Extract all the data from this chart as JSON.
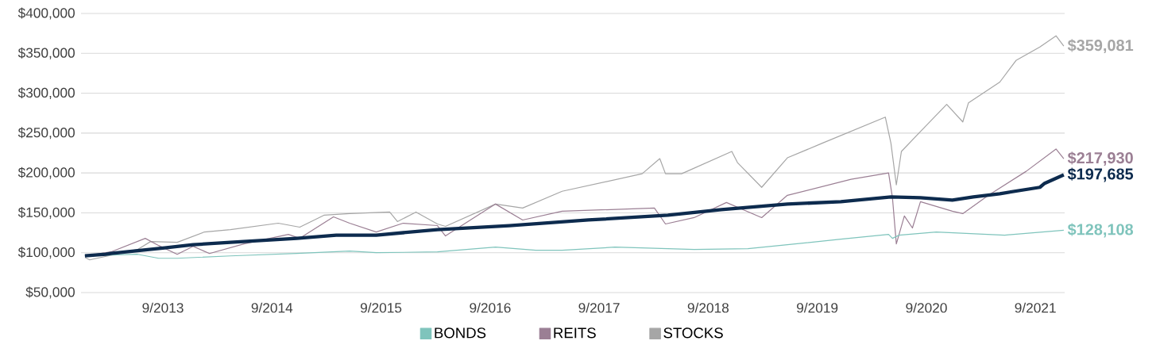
{
  "chart_data": {
    "type": "line",
    "xlim": [
      "2012-12-01",
      "2021-12-08"
    ],
    "ylim": [
      50000,
      400000
    ],
    "xticks": [
      {
        "value": "2013-09-01",
        "label": "9/2013"
      },
      {
        "value": "2014-09-01",
        "label": "9/2014"
      },
      {
        "value": "2015-09-01",
        "label": "9/2015"
      },
      {
        "value": "2016-09-01",
        "label": "9/2016"
      },
      {
        "value": "2017-09-01",
        "label": "9/2017"
      },
      {
        "value": "2018-09-01",
        "label": "9/2018"
      },
      {
        "value": "2019-09-01",
        "label": "9/2019"
      },
      {
        "value": "2020-09-01",
        "label": "9/2020"
      },
      {
        "value": "2021-09-01",
        "label": "9/2021"
      }
    ],
    "yticks": [
      {
        "value": 50000,
        "label": "$50,000"
      },
      {
        "value": 100000,
        "label": "$100,000"
      },
      {
        "value": 150000,
        "label": "$150,000"
      },
      {
        "value": 200000,
        "label": "$200,000"
      },
      {
        "value": 250000,
        "label": "$250,000"
      },
      {
        "value": 300000,
        "label": "$300,000"
      },
      {
        "value": 350000,
        "label": "$350,000"
      },
      {
        "value": 400000,
        "label": "$400,000"
      }
    ],
    "grid": "y",
    "legend": "bottom",
    "line_style": "solid",
    "marker": "none",
    "series": [
      {
        "color": "#0d2b4e",
        "x": [
          "2012-12-14",
          "2013-02-22",
          "2013-03-11",
          "2013-09-07",
          "2013-12-11",
          "2014-04-15",
          "2014-11-23",
          "2015-04-04",
          "2015-08-16",
          "2016-03-08",
          "2016-11-04",
          "2017-07-27",
          "2018-04-19",
          "2018-10-15",
          "2019-05-24",
          "2019-11-19",
          "2020-05-05",
          "2020-08-12",
          "2020-11-27",
          "2021-02-05",
          "2021-05-05",
          "2021-09-16",
          "2021-10-02",
          "2021-12-05"
        ],
        "values": [
          96000,
          98000,
          99000,
          106000,
          110000,
          113000,
          118000,
          122000,
          122000,
          129000,
          134000,
          141000,
          147000,
          154000,
          161000,
          164000,
          170000,
          169000,
          166000,
          170000,
          174000,
          182000,
          187000,
          197685
        ],
        "value_labels": [
          null,
          null,
          null,
          null,
          null,
          null,
          null,
          null,
          null,
          null,
          null,
          null,
          null,
          null,
          null,
          null,
          null,
          null,
          null,
          null,
          null,
          null,
          null,
          "$197,685"
        ]
      },
      {
        "name": "BONDS",
        "color": "#7fc4bc",
        "x": [
          "2012-12-14",
          "2013-06-08",
          "2013-08-18",
          "2013-10-19",
          "2014-04-15",
          "2014-11-23",
          "2015-05-19",
          "2015-08-16",
          "2016-03-08",
          "2016-09-19",
          "2017-02-01",
          "2017-04-30",
          "2017-10-24",
          "2018-04-19",
          "2018-07-16",
          "2019-01-12",
          "2019-05-24",
          "2019-11-19",
          "2020-04-27",
          "2020-05-10",
          "2020-06-01",
          "2020-10-04",
          "2021-05-21",
          "2021-12-05"
        ],
        "values": [
          96000,
          98000,
          93000,
          93000,
          96000,
          99000,
          102000,
          100000,
          101000,
          107000,
          103000,
          103000,
          107000,
          105000,
          104000,
          105000,
          110000,
          117000,
          123000,
          118000,
          122000,
          126000,
          122000,
          128108
        ],
        "value_labels": [
          null,
          null,
          null,
          null,
          null,
          null,
          null,
          null,
          null,
          null,
          null,
          null,
          null,
          null,
          null,
          null,
          null,
          null,
          null,
          null,
          null,
          null,
          null,
          "$128,108"
        ]
      },
      {
        "name": "REITS",
        "color": "#9b7f94",
        "x": [
          "2012-12-14",
          "2013-03-11",
          "2013-07-04",
          "2013-08-18",
          "2013-10-19",
          "2013-12-11",
          "2014-02-04",
          "2014-05-30",
          "2014-10-26",
          "2014-12-03",
          "2015-03-26",
          "2015-05-19",
          "2015-08-16",
          "2015-11-14",
          "2016-03-08",
          "2016-04-04",
          "2016-09-19",
          "2016-12-19",
          "2017-04-30",
          "2018-03-05",
          "2018-04-11",
          "2018-07-16",
          "2018-11-01",
          "2019-02-27",
          "2019-05-24",
          "2019-12-23",
          "2020-04-27",
          "2020-05-10",
          "2020-05-23",
          "2020-06-19",
          "2020-07-16",
          "2020-08-12",
          "2020-11-27",
          "2021-01-01",
          "2021-03-28",
          "2021-08-01",
          "2021-11-09",
          "2021-12-05"
        ],
        "values": [
          96000,
          101000,
          118000,
          109000,
          98000,
          108000,
          99000,
          111000,
          123000,
          118000,
          145000,
          137000,
          126000,
          137000,
          134000,
          121000,
          161000,
          141000,
          152000,
          156000,
          136000,
          144000,
          163000,
          144000,
          172000,
          192000,
          200000,
          169000,
          111000,
          146000,
          131000,
          164000,
          152000,
          149000,
          172000,
          202000,
          230000,
          217930
        ],
        "value_labels": [
          null,
          null,
          null,
          null,
          null,
          null,
          null,
          null,
          null,
          null,
          null,
          null,
          null,
          null,
          null,
          null,
          null,
          null,
          null,
          null,
          null,
          null,
          null,
          null,
          null,
          null,
          null,
          null,
          null,
          null,
          null,
          null,
          null,
          null,
          null,
          null,
          null,
          "$217,930"
        ]
      },
      {
        "name": "STOCKS",
        "color": "#a6a6a6",
        "x": [
          "2012-12-14",
          "2012-12-30",
          "2013-06-08",
          "2013-07-22",
          "2013-10-19",
          "2014-01-18",
          "2014-04-15",
          "2014-09-22",
          "2014-12-03",
          "2015-02-22",
          "2015-05-19",
          "2015-09-30",
          "2015-10-26",
          "2015-12-27",
          "2016-03-08",
          "2016-04-04",
          "2016-09-19",
          "2016-12-19",
          "2017-04-30",
          "2018-01-23",
          "2018-03-23",
          "2018-04-11",
          "2018-06-04",
          "2018-11-19",
          "2018-12-08",
          "2019-02-27",
          "2019-05-24",
          "2019-09-16",
          "2020-04-16",
          "2020-05-05",
          "2020-05-23",
          "2020-06-09",
          "2020-08-12",
          "2020-11-08",
          "2021-01-01",
          "2021-01-20",
          "2021-05-05",
          "2021-06-28",
          "2021-09-16",
          "2021-11-09",
          "2021-12-05"
        ],
        "values": [
          94000,
          91000,
          104000,
          114000,
          113000,
          126000,
          129000,
          137000,
          132000,
          147000,
          149000,
          151000,
          139000,
          151000,
          136000,
          133000,
          161000,
          156000,
          177000,
          199000,
          218000,
          199000,
          199000,
          227000,
          213000,
          182000,
          219000,
          237000,
          270000,
          237000,
          185000,
          227000,
          252000,
          286000,
          264000,
          288000,
          314000,
          341000,
          358000,
          372000,
          359081
        ],
        "value_labels": [
          null,
          null,
          null,
          null,
          null,
          null,
          null,
          null,
          null,
          null,
          null,
          null,
          null,
          null,
          null,
          null,
          null,
          null,
          null,
          null,
          null,
          null,
          null,
          null,
          null,
          null,
          null,
          null,
          null,
          null,
          null,
          null,
          null,
          null,
          null,
          null,
          null,
          null,
          null,
          null,
          "$359,081"
        ]
      }
    ]
  }
}
